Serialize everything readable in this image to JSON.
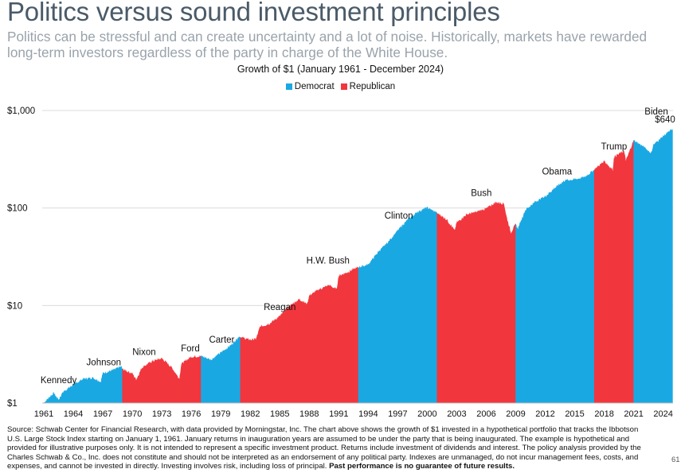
{
  "page": {
    "title": "Politics versus sound investment principles",
    "subtitle": "Politics can be stressful and can create uncertainty and a lot of noise. Historically, markets have rewarded long-term investors regardless of the party in charge of the White House.",
    "footnote_main": "Source: Schwab Center for Financial Research, with data provided by Morningstar, Inc. The chart above shows the growth of $1 invested in a hypothetical portfolio that tracks the Ibbotson U.S. Large Stock Index starting on January 1, 1961. January returns in inauguration years are assumed to be under the party that is being inaugurated. The example is hypothetical and provided for illustrative purposes only. It is not intended to represent a specific investment product. Returns include investment of dividends and interest. The policy analysis provided by the Charles Schwab & Co., Inc. does not constitute and should not be interpreted as an endorsement of any political party. Indexes are unmanaged, do not incur management fees, costs, and expenses, and cannot be invested in directly. Investing involves risk, including loss of principal.",
    "footnote_bold": "Past performance is no guarantee of future results.",
    "page_number": "61"
  },
  "colors": {
    "democrat": "#1aa8e2",
    "republican": "#f2363d"
  },
  "chart_data": {
    "type": "area",
    "title": "Growth of $1 (January 1961 - December 2024)",
    "y_scale": "log",
    "ylim": [
      1,
      1000
    ],
    "xlim": [
      1961,
      2025
    ],
    "y_ticks": [
      {
        "value": 1,
        "label": "$1"
      },
      {
        "value": 10,
        "label": "$10"
      },
      {
        "value": 100,
        "label": "$100"
      },
      {
        "value": 1000,
        "label": "$1,000"
      }
    ],
    "x_ticks": [
      1961,
      1964,
      1967,
      1970,
      1973,
      1976,
      1979,
      1982,
      1985,
      1988,
      1991,
      1994,
      1997,
      2000,
      2003,
      2006,
      2009,
      2012,
      2015,
      2018,
      2021,
      2024
    ],
    "legend": [
      {
        "label": "Democrat",
        "party": "democrat"
      },
      {
        "label": "Republican",
        "party": "republican"
      }
    ],
    "end_value_label": "$640",
    "series": [
      {
        "name": "Growth of $1",
        "x": [
          1961,
          1962,
          1962.5,
          1963,
          1964,
          1965,
          1966,
          1966.8,
          1967,
          1968,
          1968.9,
          1969,
          1970,
          1970.4,
          1971,
          1972,
          1973,
          1974,
          1974.8,
          1975,
          1976,
          1977,
          1978,
          1979,
          1980,
          1980.9,
          1981,
          1982,
          1982.6,
          1983,
          1984,
          1985,
          1986,
          1987,
          1987.8,
          1988,
          1989,
          1990,
          1990.8,
          1991,
          1992,
          1993,
          1994,
          1995,
          1996,
          1997,
          1998,
          1999,
          2000,
          2001,
          2002,
          2002.8,
          2003,
          2004,
          2005,
          2006,
          2007,
          2007.8,
          2008,
          2008.5,
          2009,
          2009.2,
          2010,
          2011,
          2012,
          2013,
          2014,
          2015,
          2016,
          2017,
          2018,
          2018.9,
          2019,
          2020,
          2020.2,
          2021,
          2022,
          2022.8,
          2023,
          2024,
          2024.95
        ],
        "values": [
          1.0,
          1.25,
          1.07,
          1.3,
          1.52,
          1.75,
          1.8,
          1.63,
          2.0,
          2.15,
          2.35,
          2.2,
          1.98,
          1.72,
          2.3,
          2.65,
          2.85,
          2.3,
          1.75,
          2.5,
          2.95,
          3.0,
          2.75,
          3.25,
          3.85,
          4.8,
          4.7,
          4.4,
          4.5,
          6.0,
          6.5,
          7.7,
          9.8,
          11.5,
          10.2,
          12.5,
          14.5,
          16.0,
          14.5,
          20.0,
          22.0,
          24.5,
          26.0,
          35.0,
          44.0,
          58.0,
          75.0,
          90.0,
          100.0,
          88.0,
          75.0,
          58.0,
          70.0,
          85.0,
          90.0,
          98.0,
          113.0,
          110.0,
          85.0,
          55.0,
          68.0,
          60.0,
          95.0,
          115.0,
          130.0,
          160.0,
          190.0,
          195.0,
          205.0,
          245.0,
          300.0,
          240.0,
          330.0,
          380.0,
          300.0,
          490.0,
          420.0,
          360.0,
          440.0,
          540.0,
          640.0
        ]
      }
    ],
    "terms": [
      {
        "president": "Kennedy",
        "party": "democrat",
        "start": 1961,
        "end": 1963.9
      },
      {
        "president": "Johnson",
        "party": "democrat",
        "start": 1963.9,
        "end": 1969
      },
      {
        "president": "Nixon",
        "party": "republican",
        "start": 1969,
        "end": 1974.6
      },
      {
        "president": "Ford",
        "party": "republican",
        "start": 1974.6,
        "end": 1977
      },
      {
        "president": "Carter",
        "party": "democrat",
        "start": 1977,
        "end": 1981
      },
      {
        "president": "Reagan",
        "party": "republican",
        "start": 1981,
        "end": 1989
      },
      {
        "president": "H.W. Bush",
        "party": "republican",
        "start": 1989,
        "end": 1993
      },
      {
        "president": "Clinton",
        "party": "democrat",
        "start": 1993,
        "end": 2001
      },
      {
        "president": "Bush",
        "party": "republican",
        "start": 2001,
        "end": 2009
      },
      {
        "president": "Obama",
        "party": "democrat",
        "start": 2009,
        "end": 2017
      },
      {
        "president": "Trump",
        "party": "republican",
        "start": 2017,
        "end": 2021
      },
      {
        "president": "Biden",
        "party": "democrat",
        "start": 2021,
        "end": 2024.95
      }
    ],
    "president_labels": [
      {
        "text": "Kennedy",
        "x": 1962.5,
        "value": 1.6
      },
      {
        "text": "Johnson",
        "x": 1967.1,
        "value": 2.45
      },
      {
        "text": "Nixon",
        "x": 1971.2,
        "value": 3.1
      },
      {
        "text": "Ford",
        "x": 1975.9,
        "value": 3.4
      },
      {
        "text": "Carter",
        "x": 1979.1,
        "value": 4.15
      },
      {
        "text": "Reagan",
        "x": 1985.0,
        "value": 9.0
      },
      {
        "text": "H.W. Bush",
        "x": 1989.9,
        "value": 27.0
      },
      {
        "text": "Clinton",
        "x": 1997.1,
        "value": 78.0
      },
      {
        "text": "Bush",
        "x": 2005.5,
        "value": 133.0
      },
      {
        "text": "Obama",
        "x": 2013.2,
        "value": 220.0
      },
      {
        "text": "Trump",
        "x": 2019.0,
        "value": 400.0
      },
      {
        "text": "Biden",
        "x": 2023.3,
        "value": 910.0
      }
    ]
  }
}
